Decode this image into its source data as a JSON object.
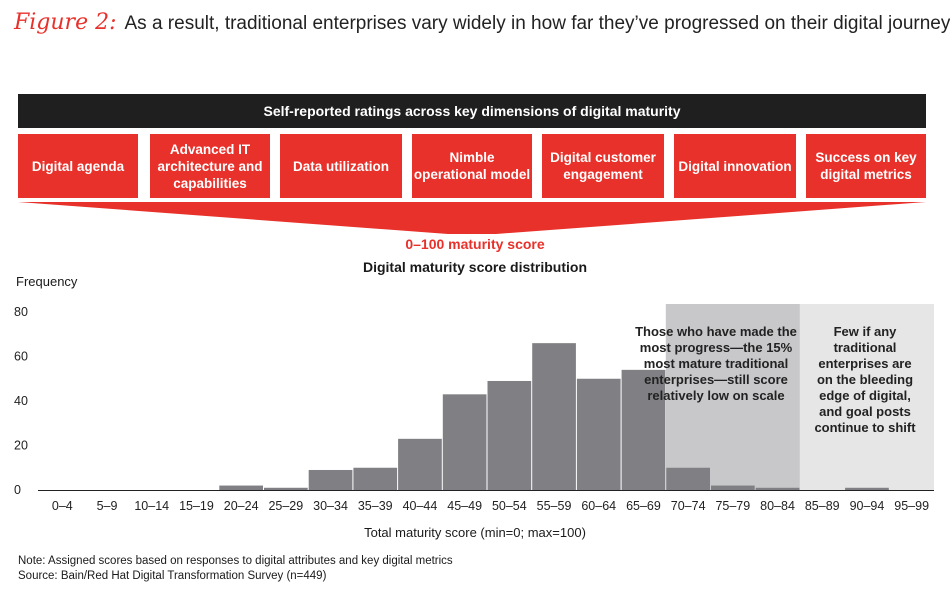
{
  "figure": {
    "label": "Figure 2:",
    "title": "As a result, traditional enterprises vary widely in how far they’ve progressed on their digital journey"
  },
  "header_bar": "Self-reported ratings across key dimensions of digital maturity",
  "dimensions": [
    "Digital agenda",
    "Advanced IT architecture and capabilities",
    "Data utilization",
    "Nimble operational model",
    "Digital customer engagement",
    "Digital innovation",
    "Success on key digital metrics"
  ],
  "score_label": "0–100 maturity score",
  "colors": {
    "accent": "#e8312a",
    "bar": "#808084",
    "dark": "#1f1f1f",
    "shade_mature": "#c8c8ca",
    "shade_edge": "#e6e6e7"
  },
  "annotations": {
    "mature": "Those who have made the most progress—the 15% most mature traditional enterprises—still score relatively low on scale",
    "edge": "Few if any traditional enterprises are on the bleeding edge of digital, and goal posts continue to shift"
  },
  "notes": {
    "note": "Note: Assigned scores based on responses to digital attributes and key digital metrics",
    "source": "Source: Bain/Red Hat Digital Transformation Survey (n=449)"
  },
  "chart_data": {
    "type": "bar",
    "title": "Digital maturity score distribution",
    "xlabel": "Total maturity score (min=0; max=100)",
    "ylabel": "Frequency",
    "ylim": [
      0,
      80
    ],
    "yticks": [
      0,
      20,
      40,
      60,
      80
    ],
    "grid": false,
    "categories": [
      "0–4",
      "5–9",
      "10–14",
      "15–19",
      "20–24",
      "25–29",
      "30–34",
      "35–39",
      "40–44",
      "45–49",
      "50–54",
      "55–59",
      "60–64",
      "65–69",
      "70–74",
      "75–79",
      "80–84",
      "85–89",
      "90–94",
      "95–99"
    ],
    "values": [
      0,
      0,
      0,
      0,
      2,
      1,
      9,
      10,
      23,
      43,
      49,
      66,
      50,
      54,
      10,
      2,
      1,
      0,
      1,
      0
    ],
    "shaded_ranges": [
      {
        "from": "70–74",
        "to": "80–84",
        "shade": "shade_mature"
      },
      {
        "from": "85–89",
        "to": "95–99",
        "shade": "shade_edge"
      }
    ]
  }
}
